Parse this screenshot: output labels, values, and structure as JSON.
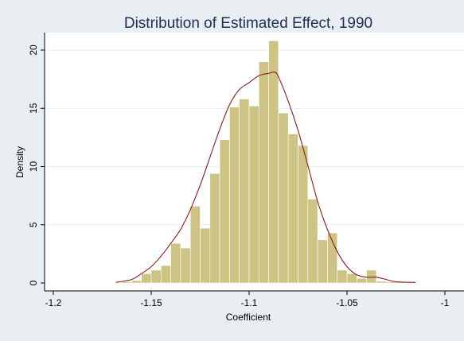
{
  "chart_data": {
    "type": "bar",
    "title": "Distribution of Estimated Effect, 1990",
    "xlabel": "Coefficient",
    "ylabel": "Density",
    "xlim": [
      -1.2,
      -1.0
    ],
    "ylim": [
      0,
      21.5
    ],
    "xticks": [
      -1.2,
      -1.15,
      -1.1,
      -1.05,
      -1.0
    ],
    "xtick_labels": [
      "-1.2",
      "-1.15",
      "-1.1",
      "-1.05",
      "-1"
    ],
    "yticks": [
      0,
      5,
      10,
      15,
      20
    ],
    "ytick_labels": [
      "0",
      "5",
      "10",
      "15",
      "20"
    ],
    "grid": true,
    "bin_width": 0.005,
    "bins": [
      {
        "x0": -1.165,
        "value": 0.1
      },
      {
        "x0": -1.16,
        "value": 0.2
      },
      {
        "x0": -1.155,
        "value": 0.8
      },
      {
        "x0": -1.15,
        "value": 1.1
      },
      {
        "x0": -1.145,
        "value": 1.5
      },
      {
        "x0": -1.14,
        "value": 3.4
      },
      {
        "x0": -1.135,
        "value": 3.0
      },
      {
        "x0": -1.13,
        "value": 6.6
      },
      {
        "x0": -1.125,
        "value": 4.7
      },
      {
        "x0": -1.12,
        "value": 9.4
      },
      {
        "x0": -1.115,
        "value": 12.3
      },
      {
        "x0": -1.11,
        "value": 15.1
      },
      {
        "x0": -1.105,
        "value": 15.8
      },
      {
        "x0": -1.1,
        "value": 15.2
      },
      {
        "x0": -1.095,
        "value": 19.0
      },
      {
        "x0": -1.09,
        "value": 20.8
      },
      {
        "x0": -1.085,
        "value": 14.6
      },
      {
        "x0": -1.08,
        "value": 12.8
      },
      {
        "x0": -1.075,
        "value": 11.8
      },
      {
        "x0": -1.07,
        "value": 7.2
      },
      {
        "x0": -1.065,
        "value": 3.7
      },
      {
        "x0": -1.06,
        "value": 4.3
      },
      {
        "x0": -1.055,
        "value": 1.1
      },
      {
        "x0": -1.05,
        "value": 0.8
      },
      {
        "x0": -1.045,
        "value": 0.4
      },
      {
        "x0": -1.04,
        "value": 1.1
      },
      {
        "x0": -1.035,
        "value": 0.15
      },
      {
        "x0": -1.03,
        "value": 0.1
      },
      {
        "x0": -1.025,
        "value": 0.1
      }
    ],
    "density_curve": {
      "x": [
        -1.168,
        -1.16,
        -1.155,
        -1.15,
        -1.145,
        -1.14,
        -1.135,
        -1.13,
        -1.125,
        -1.12,
        -1.115,
        -1.11,
        -1.105,
        -1.1,
        -1.095,
        -1.09,
        -1.087,
        -1.085,
        -1.08,
        -1.075,
        -1.07,
        -1.065,
        -1.06,
        -1.055,
        -1.05,
        -1.045,
        -1.04,
        -1.035,
        -1.03,
        -1.025,
        -1.015
      ],
      "y": [
        0.05,
        0.3,
        0.8,
        1.4,
        2.3,
        3.4,
        4.6,
        6.3,
        8.4,
        10.8,
        13.2,
        15.3,
        16.6,
        17.2,
        17.8,
        18.0,
        18.1,
        17.7,
        15.6,
        13.1,
        10.1,
        7.0,
        4.6,
        2.7,
        1.4,
        0.7,
        0.5,
        0.5,
        0.3,
        0.1,
        0.05
      ]
    },
    "colors": {
      "background": "#e8eef2",
      "plot_background": "#ffffff",
      "bar_fill": "#cdc384",
      "bar_stroke": "#ffffff",
      "curve": "#8b1a1a",
      "title": "#1f2d57",
      "grid": "#e6ecef",
      "axis": "#000000"
    }
  }
}
